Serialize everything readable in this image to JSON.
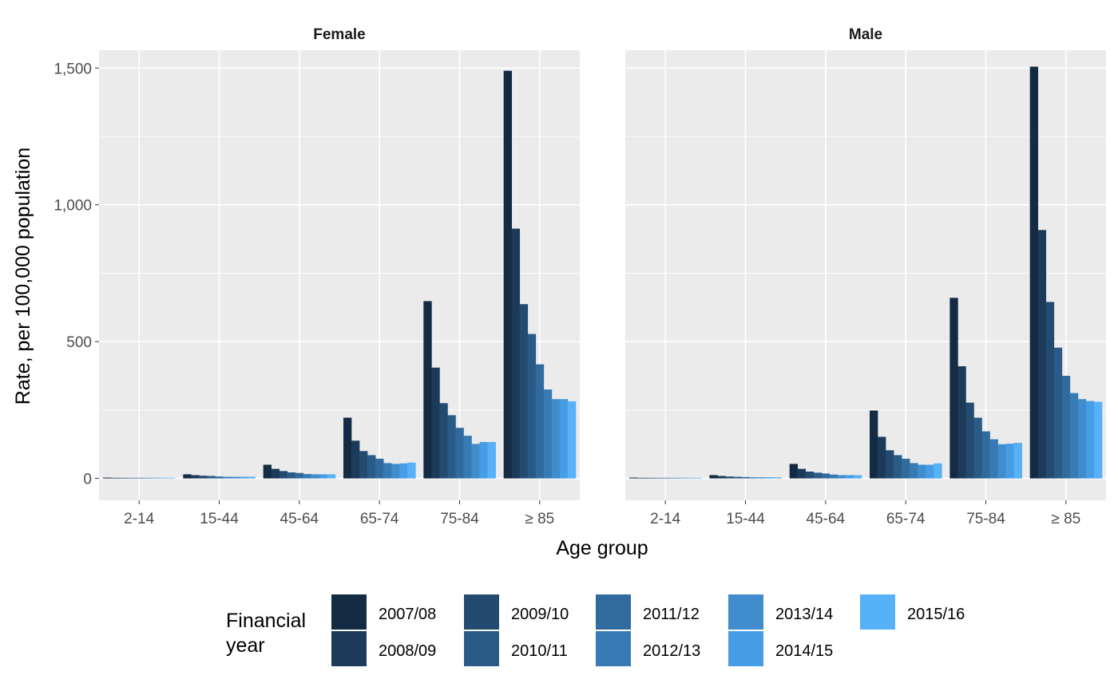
{
  "chart_data": {
    "type": "bar",
    "xlabel": "Age group",
    "ylabel": "Rate, per 100,000 population",
    "ylim": [
      -80,
      1565
    ],
    "yticks": [
      0,
      500,
      1000,
      1500
    ],
    "ytick_labels": [
      "0",
      "500",
      "1,000",
      "1,500"
    ],
    "categories": [
      "2-14",
      "15-44",
      "45-64",
      "65-74",
      "75-84",
      "≥ 85"
    ],
    "grid": true,
    "legend_position": "bottom",
    "legend": {
      "title_lines": [
        "Financial",
        "year"
      ],
      "entries": [
        "2007/08",
        "2008/09",
        "2009/10",
        "2010/11",
        "2011/12",
        "2012/13",
        "2013/14",
        "2014/15",
        "2015/16"
      ]
    },
    "series_colors": [
      "#132b43",
      "#1c3a59",
      "#234b6f",
      "#2a5b86",
      "#316b9d",
      "#387bb4",
      "#408ccd",
      "#479de5",
      "#56b1f7"
    ],
    "panels": [
      {
        "title": "Female",
        "series": [
          {
            "name": "2007/08",
            "values": [
              3,
              15,
              50,
              222,
              648,
              1490
            ]
          },
          {
            "name": "2008/09",
            "values": [
              2,
              12,
              35,
              138,
              405,
              913
            ]
          },
          {
            "name": "2009/10",
            "values": [
              2,
              10,
              27,
              100,
              275,
              637
            ]
          },
          {
            "name": "2010/11",
            "values": [
              2,
              9,
              22,
              85,
              231,
              528
            ]
          },
          {
            "name": "2011/12",
            "values": [
              2,
              7,
              20,
              72,
              185,
              417
            ]
          },
          {
            "name": "2012/13",
            "values": [
              2,
              6,
              16,
              56,
              156,
              325
            ]
          },
          {
            "name": "2013/14",
            "values": [
              2,
              6,
              15,
              53,
              126,
              290
            ]
          },
          {
            "name": "2014/15",
            "values": [
              2,
              6,
              15,
              55,
              133,
              290
            ]
          },
          {
            "name": "2015/16",
            "values": [
              2,
              6,
              15,
              58,
              133,
              282
            ]
          }
        ]
      },
      {
        "title": "Male",
        "series": [
          {
            "name": "2007/08",
            "values": [
              3,
              12,
              53,
              248,
              660,
              1505
            ]
          },
          {
            "name": "2008/09",
            "values": [
              2,
              9,
              35,
              152,
              410,
              908
            ]
          },
          {
            "name": "2009/10",
            "values": [
              2,
              7,
              25,
              103,
              277,
              645
            ]
          },
          {
            "name": "2010/11",
            "values": [
              2,
              6,
              21,
              85,
              222,
              478
            ]
          },
          {
            "name": "2011/12",
            "values": [
              2,
              5,
              18,
              72,
              172,
              375
            ]
          },
          {
            "name": "2012/13",
            "values": [
              2,
              4,
              14,
              56,
              143,
              312
            ]
          },
          {
            "name": "2013/14",
            "values": [
              2,
              4,
              12,
              50,
              125,
              290
            ]
          },
          {
            "name": "2014/15",
            "values": [
              2,
              4,
              12,
              50,
              127,
              283
            ]
          },
          {
            "name": "2015/16",
            "values": [
              2,
              4,
              12,
              55,
              130,
              280
            ]
          }
        ]
      }
    ]
  }
}
